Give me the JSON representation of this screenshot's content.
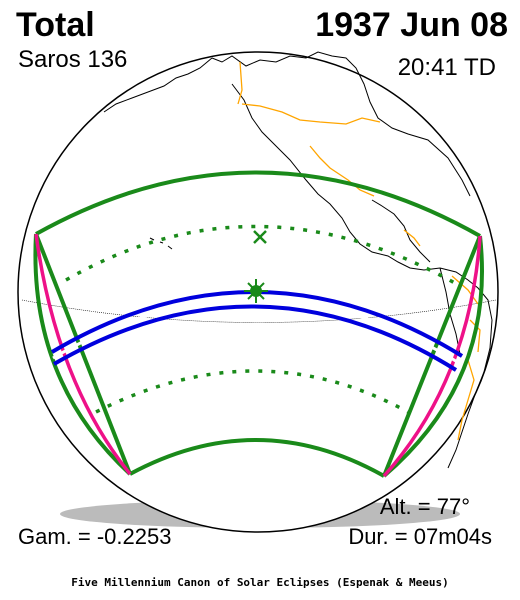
{
  "header": {
    "eclipse_type": "Total",
    "date": "1937 Jun 08",
    "saros": "Saros 136",
    "time": "20:41 TD"
  },
  "footer": {
    "altitude": "Alt. = 77°",
    "gamma": "Gam. = -0.2253",
    "duration": "Dur. = 07m04s",
    "credit": "Five Millennium Canon of Solar Eclipses (Espenak & Meeus)"
  },
  "colors": {
    "globe_outline": "#000000",
    "coastline": "#000000",
    "borders": "#ffa500",
    "penumbral_limits": "#1a8a1a",
    "central_path": "#0000dd",
    "sunrise_sunset_curves": "#ee1188",
    "globe_shadow": "#bbbbbb"
  },
  "symbols": {
    "greatest_eclipse_marker": "sun-star-icon",
    "subsolar_marker": "x-icon"
  }
}
